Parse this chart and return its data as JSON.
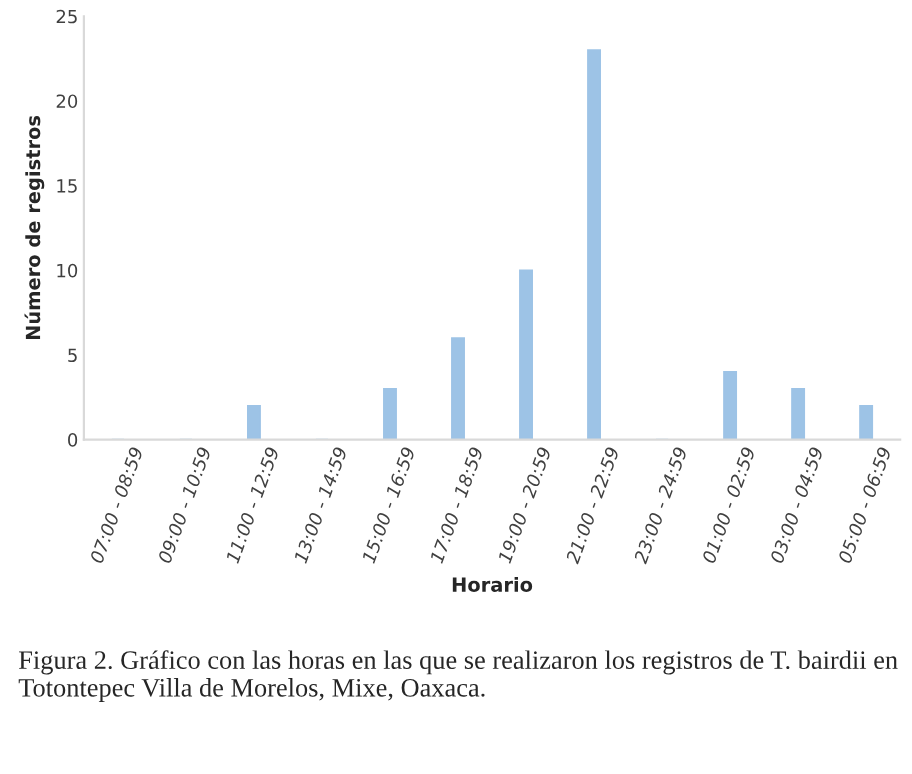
{
  "chart_data": {
    "type": "bar",
    "xlabel": "Horario",
    "ylabel": "Número de registros",
    "categories": [
      "07:00 - 08:59",
      "09:00 - 10:59",
      "11:00 - 12:59",
      "13:00 - 14:59",
      "15:00 - 16:59",
      "17:00 - 18:59",
      "19:00 - 20:59",
      "21:00 - 22:59",
      "23:00 - 24:59",
      "01:00 - 02:59",
      "03:00 - 04:59",
      "05:00 - 06:59"
    ],
    "values": [
      0,
      0,
      2,
      0,
      3,
      6,
      10,
      23,
      0,
      4,
      3,
      2
    ],
    "color": "#9dc3e6",
    "ylim": [
      0,
      25
    ],
    "yticks": [
      0,
      5,
      10,
      15,
      20,
      25
    ],
    "grid": false,
    "legend": false,
    "annotations": [
      "Figura 2. Gráfico con las horas en las que se realizaron los registros de T. bairdii en Totontepec Villa de Morelos, Mixe, Oaxaca."
    ]
  }
}
